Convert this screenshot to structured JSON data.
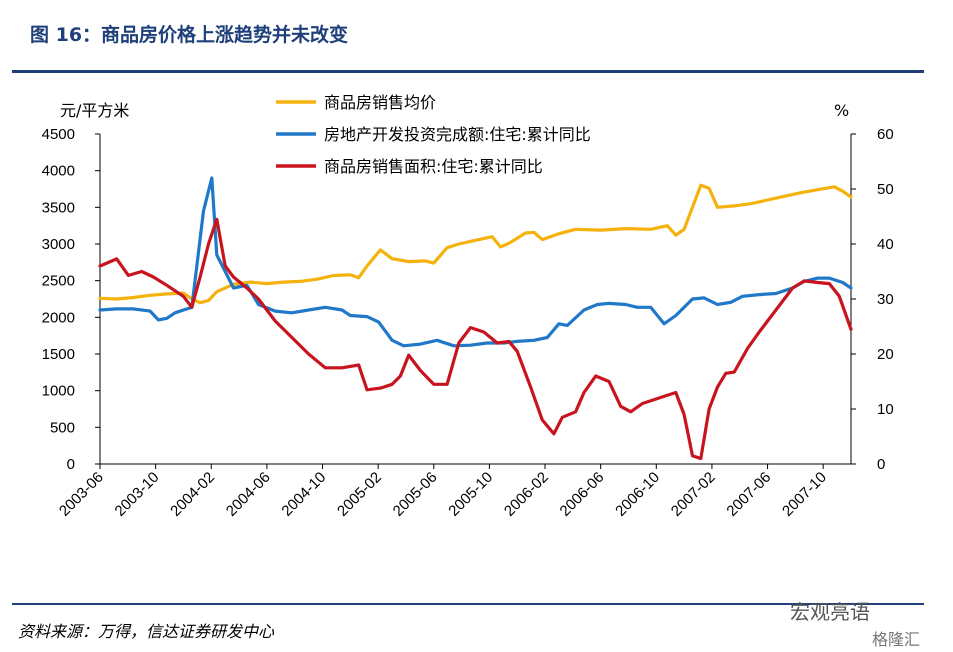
{
  "header": {
    "title": "图 16：商品房价格上涨趋势并未改变"
  },
  "footer": {
    "source": "资料来源：万得，信达证券研发中心",
    "watermark": "宏观亮语",
    "watermark_sub": "格隆汇"
  },
  "chart_data": {
    "type": "line",
    "x_labels": [
      "2003-06",
      "2003-10",
      "2004-02",
      "2004-06",
      "2004-10",
      "2005-02",
      "2005-06",
      "2005-10",
      "2006-02",
      "2006-06",
      "2006-10",
      "2007-02",
      "2007-06",
      "2007-10"
    ],
    "y_left": {
      "label": "元/平方米",
      "min": 0,
      "max": 4500,
      "ticks": [
        0,
        500,
        1000,
        1500,
        2000,
        2500,
        3000,
        3500,
        4000,
        4500
      ]
    },
    "y_right": {
      "label": "%",
      "min": 0,
      "max": 60,
      "ticks": [
        0,
        10,
        20,
        30,
        40,
        50,
        60
      ]
    },
    "x_range": [
      2003.5,
      2008.0
    ],
    "series": [
      {
        "name": "商品房销售均价",
        "axis": "left",
        "color": "#f5b20c",
        "points": [
          [
            2003.5,
            2260
          ],
          [
            2003.6,
            2250
          ],
          [
            2003.7,
            2270
          ],
          [
            2003.8,
            2300
          ],
          [
            2003.9,
            2320
          ],
          [
            2004.0,
            2330
          ],
          [
            2004.05,
            2250
          ],
          [
            2004.1,
            2200
          ],
          [
            2004.15,
            2230
          ],
          [
            2004.2,
            2350
          ],
          [
            2004.3,
            2450
          ],
          [
            2004.4,
            2480
          ],
          [
            2004.5,
            2460
          ],
          [
            2004.6,
            2480
          ],
          [
            2004.7,
            2490
          ],
          [
            2004.8,
            2520
          ],
          [
            2004.9,
            2570
          ],
          [
            2005.0,
            2580
          ],
          [
            2005.05,
            2540
          ],
          [
            2005.1,
            2700
          ],
          [
            2005.18,
            2920
          ],
          [
            2005.25,
            2800
          ],
          [
            2005.35,
            2760
          ],
          [
            2005.45,
            2770
          ],
          [
            2005.5,
            2740
          ],
          [
            2005.58,
            2950
          ],
          [
            2005.65,
            3000
          ],
          [
            2005.75,
            3050
          ],
          [
            2005.85,
            3100
          ],
          [
            2005.9,
            2960
          ],
          [
            2005.95,
            3010
          ],
          [
            2006.05,
            3150
          ],
          [
            2006.1,
            3160
          ],
          [
            2006.15,
            3060
          ],
          [
            2006.25,
            3140
          ],
          [
            2006.35,
            3200
          ],
          [
            2006.5,
            3190
          ],
          [
            2006.65,
            3210
          ],
          [
            2006.8,
            3200
          ],
          [
            2006.9,
            3250
          ],
          [
            2006.95,
            3120
          ],
          [
            2007.0,
            3200
          ],
          [
            2007.1,
            3800
          ],
          [
            2007.15,
            3760
          ],
          [
            2007.2,
            3500
          ],
          [
            2007.3,
            3520
          ],
          [
            2007.4,
            3550
          ],
          [
            2007.5,
            3600
          ],
          [
            2007.6,
            3650
          ],
          [
            2007.7,
            3700
          ],
          [
            2007.8,
            3740
          ],
          [
            2007.9,
            3780
          ],
          [
            2007.95,
            3720
          ],
          [
            2008.0,
            3640
          ]
        ]
      },
      {
        "name": "房地产开发投资完成额:住宅:累计同比",
        "axis": "right",
        "color": "#1f78c8",
        "points": [
          [
            2003.5,
            28
          ],
          [
            2003.6,
            28.2
          ],
          [
            2003.7,
            28.2
          ],
          [
            2003.8,
            27.8
          ],
          [
            2003.85,
            26.2
          ],
          [
            2003.9,
            26.5
          ],
          [
            2003.95,
            27.5
          ],
          [
            2004.0,
            28
          ],
          [
            2004.05,
            28.5
          ],
          [
            2004.12,
            46
          ],
          [
            2004.17,
            52
          ],
          [
            2004.2,
            38
          ],
          [
            2004.25,
            35
          ],
          [
            2004.3,
            32
          ],
          [
            2004.38,
            32.5
          ],
          [
            2004.45,
            29
          ],
          [
            2004.55,
            27.8
          ],
          [
            2004.65,
            27.5
          ],
          [
            2004.75,
            28
          ],
          [
            2004.85,
            28.5
          ],
          [
            2004.95,
            28
          ],
          [
            2005.0,
            27
          ],
          [
            2005.1,
            26.8
          ],
          [
            2005.17,
            25.8
          ],
          [
            2005.25,
            22.5
          ],
          [
            2005.32,
            21.5
          ],
          [
            2005.42,
            21.8
          ],
          [
            2005.52,
            22.5
          ],
          [
            2005.62,
            21.5
          ],
          [
            2005.72,
            21.6
          ],
          [
            2005.82,
            22
          ],
          [
            2005.92,
            22
          ],
          [
            2006.0,
            22.3
          ],
          [
            2006.1,
            22.5
          ],
          [
            2006.18,
            23
          ],
          [
            2006.25,
            25.5
          ],
          [
            2006.3,
            25.2
          ],
          [
            2006.4,
            28
          ],
          [
            2006.48,
            29
          ],
          [
            2006.55,
            29.2
          ],
          [
            2006.65,
            29
          ],
          [
            2006.72,
            28.5
          ],
          [
            2006.8,
            28.5
          ],
          [
            2006.88,
            25.5
          ],
          [
            2006.95,
            27
          ],
          [
            2007.05,
            30
          ],
          [
            2007.12,
            30.2
          ],
          [
            2007.2,
            29
          ],
          [
            2007.28,
            29.4
          ],
          [
            2007.35,
            30.5
          ],
          [
            2007.45,
            30.8
          ],
          [
            2007.55,
            31
          ],
          [
            2007.65,
            32
          ],
          [
            2007.72,
            33.2
          ],
          [
            2007.8,
            33.8
          ],
          [
            2007.87,
            33.8
          ],
          [
            2007.95,
            33
          ],
          [
            2008.0,
            32
          ]
        ]
      },
      {
        "name": "商品房销售面积:住宅:累计同比",
        "axis": "right",
        "color": "#c8141e",
        "points": [
          [
            2003.5,
            36
          ],
          [
            2003.6,
            37.3
          ],
          [
            2003.67,
            34.3
          ],
          [
            2003.75,
            35
          ],
          [
            2003.82,
            34
          ],
          [
            2003.9,
            32.5
          ],
          [
            2004.0,
            30.5
          ],
          [
            2004.05,
            28.5
          ],
          [
            2004.1,
            34
          ],
          [
            2004.15,
            40
          ],
          [
            2004.2,
            44.5
          ],
          [
            2004.25,
            36
          ],
          [
            2004.3,
            34
          ],
          [
            2004.38,
            32
          ],
          [
            2004.45,
            30
          ],
          [
            2004.55,
            26
          ],
          [
            2004.65,
            23
          ],
          [
            2004.75,
            20
          ],
          [
            2004.85,
            17.5
          ],
          [
            2004.95,
            17.5
          ],
          [
            2005.05,
            18
          ],
          [
            2005.1,
            13.5
          ],
          [
            2005.18,
            13.8
          ],
          [
            2005.25,
            14.5
          ],
          [
            2005.3,
            16
          ],
          [
            2005.35,
            19.8
          ],
          [
            2005.42,
            17
          ],
          [
            2005.5,
            14.5
          ],
          [
            2005.58,
            14.5
          ],
          [
            2005.65,
            22
          ],
          [
            2005.72,
            24.8
          ],
          [
            2005.8,
            24
          ],
          [
            2005.88,
            22
          ],
          [
            2005.95,
            22.3
          ],
          [
            2006.0,
            20.5
          ],
          [
            2006.08,
            14
          ],
          [
            2006.15,
            8
          ],
          [
            2006.22,
            5.5
          ],
          [
            2006.27,
            8.5
          ],
          [
            2006.35,
            9.5
          ],
          [
            2006.4,
            13
          ],
          [
            2006.47,
            16
          ],
          [
            2006.55,
            15
          ],
          [
            2006.62,
            10.5
          ],
          [
            2006.68,
            9.5
          ],
          [
            2006.75,
            11
          ],
          [
            2006.85,
            12
          ],
          [
            2006.95,
            13
          ],
          [
            2007.0,
            9
          ],
          [
            2007.05,
            1.5
          ],
          [
            2007.1,
            1.0
          ],
          [
            2007.15,
            10
          ],
          [
            2007.2,
            14
          ],
          [
            2007.25,
            16.5
          ],
          [
            2007.3,
            16.7
          ],
          [
            2007.38,
            21
          ],
          [
            2007.45,
            24
          ],
          [
            2007.55,
            28
          ],
          [
            2007.65,
            32
          ],
          [
            2007.72,
            33.3
          ],
          [
            2007.8,
            33
          ],
          [
            2007.87,
            32.8
          ],
          [
            2007.93,
            30.5
          ],
          [
            2008.0,
            24.5
          ]
        ]
      }
    ]
  }
}
